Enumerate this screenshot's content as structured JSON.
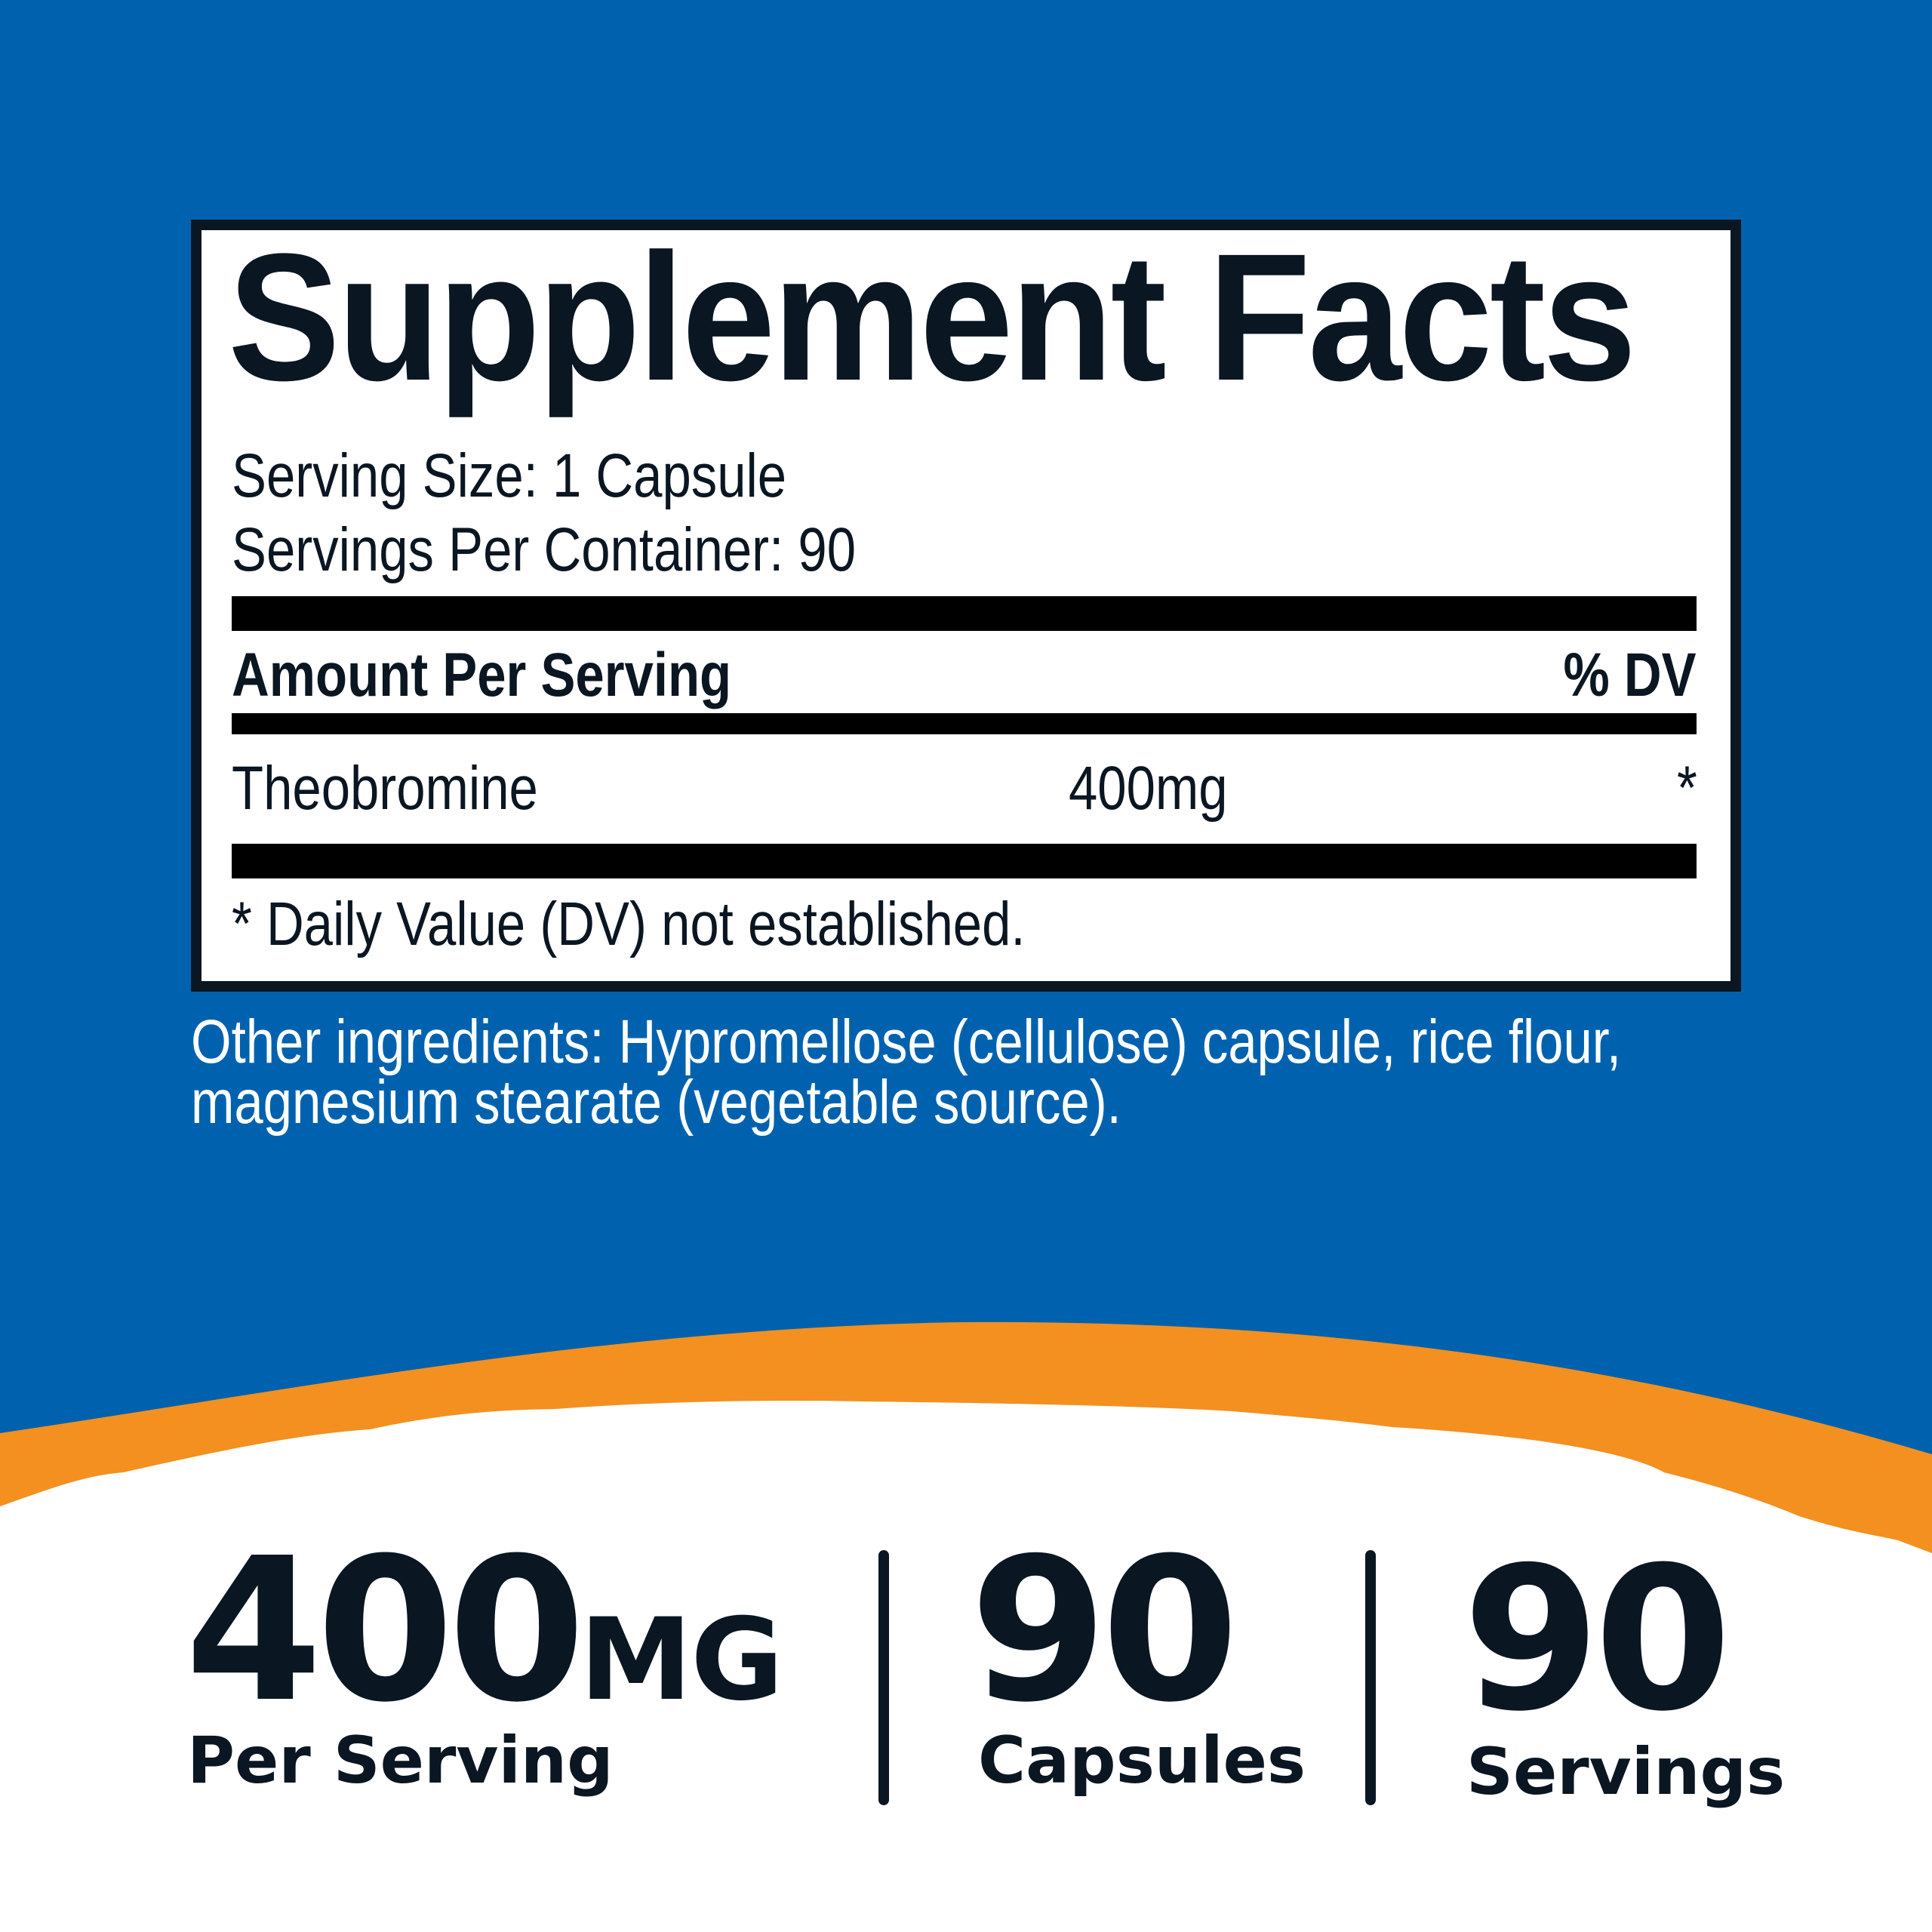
{
  "colors": {
    "background_blue": "#0062ae",
    "accent_orange": "#f39020",
    "text_dark": "#0a1622",
    "panel_white": "#ffffff"
  },
  "facts": {
    "title": "Supplement Facts",
    "serving_size": "Serving Size: 1 Capsule",
    "servings_per_container": "Servings Per Container: 90",
    "amount_header": "Amount Per Serving",
    "dv_header": "% DV",
    "rows": [
      {
        "name": "Theobromine",
        "amount": "400mg",
        "dv": "*"
      }
    ],
    "footnote": "* Daily Value (DV) not established."
  },
  "other_ingredients": {
    "line1": "Other ingredients: Hypromellose (cellulose) capsule, rice flour,",
    "line2": "magnesium stearate (vegetable source)."
  },
  "stats": [
    {
      "value": "400",
      "unit": "MG",
      "label": "Per Serving"
    },
    {
      "value": "90",
      "label": "Capsules"
    },
    {
      "value": "90",
      "label": "Servings"
    }
  ]
}
